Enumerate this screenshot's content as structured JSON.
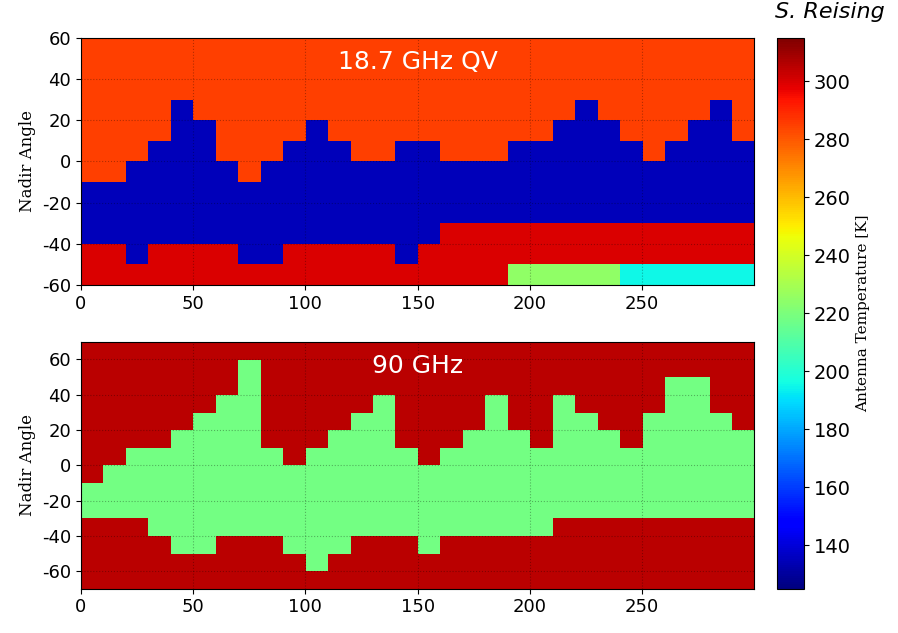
{
  "chart_data": [
    {
      "type": "heatmap",
      "annotation": "18.7 GHz QV",
      "ylabel": "Nadir Angle",
      "xlim": [
        0,
        300
      ],
      "ylim": [
        -60,
        60
      ],
      "xticks": [
        0,
        50,
        100,
        150,
        200,
        250
      ],
      "yticks": [
        -60,
        -40,
        -20,
        0,
        20,
        40,
        60
      ],
      "cells": [
        [
          285,
          285,
          285,
          285,
          285,
          285,
          285,
          285,
          285,
          285,
          285,
          285,
          285,
          285,
          285,
          285,
          285,
          285,
          285,
          285,
          285,
          285,
          285,
          285,
          285,
          285,
          285,
          285,
          285,
          285
        ],
        [
          285,
          285,
          285,
          285,
          285,
          285,
          285,
          285,
          285,
          285,
          285,
          285,
          285,
          285,
          285,
          285,
          285,
          285,
          285,
          285,
          285,
          285,
          285,
          285,
          285,
          285,
          285,
          285,
          285,
          285
        ],
        [
          285,
          285,
          285,
          285,
          285,
          285,
          285,
          285,
          285,
          285,
          285,
          285,
          285,
          285,
          285,
          285,
          285,
          285,
          285,
          285,
          285,
          285,
          285,
          285,
          285,
          285,
          285,
          285,
          285,
          285
        ],
        [
          285,
          285,
          285,
          285,
          135,
          285,
          285,
          285,
          285,
          285,
          285,
          285,
          285,
          285,
          285,
          285,
          285,
          285,
          285,
          285,
          285,
          285,
          135,
          285,
          285,
          285,
          285,
          285,
          135,
          285
        ],
        [
          285,
          285,
          285,
          285,
          135,
          135,
          285,
          285,
          285,
          285,
          135,
          285,
          285,
          285,
          285,
          285,
          285,
          285,
          285,
          285,
          285,
          135,
          135,
          135,
          285,
          285,
          285,
          135,
          135,
          285
        ],
        [
          285,
          285,
          285,
          135,
          135,
          135,
          285,
          285,
          285,
          135,
          135,
          135,
          285,
          285,
          135,
          135,
          285,
          285,
          285,
          135,
          135,
          135,
          135,
          135,
          135,
          285,
          135,
          135,
          135,
          135
        ],
        [
          285,
          285,
          135,
          135,
          135,
          135,
          135,
          285,
          135,
          135,
          135,
          135,
          135,
          135,
          135,
          135,
          135,
          135,
          135,
          135,
          135,
          135,
          135,
          135,
          135,
          135,
          135,
          135,
          135,
          135
        ],
        [
          135,
          135,
          135,
          135,
          135,
          135,
          135,
          135,
          135,
          135,
          135,
          135,
          135,
          135,
          135,
          135,
          135,
          135,
          135,
          135,
          135,
          135,
          135,
          135,
          135,
          135,
          135,
          135,
          135,
          135
        ],
        [
          135,
          135,
          135,
          135,
          135,
          135,
          135,
          135,
          135,
          135,
          135,
          135,
          135,
          135,
          135,
          135,
          135,
          135,
          135,
          135,
          135,
          135,
          135,
          135,
          135,
          135,
          135,
          135,
          135,
          135
        ],
        [
          135,
          135,
          135,
          135,
          135,
          135,
          135,
          135,
          135,
          135,
          135,
          135,
          135,
          135,
          135,
          135,
          300,
          300,
          300,
          300,
          300,
          300,
          300,
          300,
          300,
          300,
          300,
          300,
          300,
          300
        ],
        [
          300,
          300,
          135,
          300,
          300,
          300,
          300,
          135,
          135,
          300,
          300,
          300,
          300,
          300,
          135,
          300,
          300,
          300,
          300,
          300,
          300,
          300,
          300,
          300,
          300,
          300,
          300,
          300,
          300,
          300
        ],
        [
          300,
          300,
          300,
          300,
          300,
          300,
          300,
          300,
          300,
          300,
          300,
          300,
          300,
          300,
          300,
          300,
          300,
          300,
          300,
          225,
          225,
          225,
          225,
          225,
          195,
          195,
          195,
          195,
          195,
          195
        ]
      ]
    },
    {
      "type": "heatmap",
      "annotation": "90 GHz",
      "ylabel": "Nadir Angle",
      "xlim": [
        0,
        300
      ],
      "ylim": [
        -70,
        70
      ],
      "xticks": [
        0,
        50,
        100,
        150,
        200,
        250
      ],
      "yticks": [
        -60,
        -40,
        -20,
        0,
        20,
        40,
        60
      ],
      "cells": [
        [
          305,
          305,
          305,
          305,
          305,
          305,
          305,
          305,
          305,
          305,
          305,
          305,
          305,
          305,
          305,
          305,
          305,
          305,
          305,
          305,
          305,
          305,
          305,
          305,
          305,
          305,
          305,
          305,
          305,
          305
        ],
        [
          305,
          305,
          305,
          305,
          305,
          305,
          305,
          218,
          305,
          305,
          305,
          305,
          305,
          305,
          305,
          305,
          305,
          305,
          305,
          305,
          305,
          305,
          305,
          305,
          305,
          305,
          305,
          305,
          305,
          305
        ],
        [
          305,
          305,
          305,
          305,
          305,
          305,
          305,
          218,
          305,
          305,
          305,
          305,
          305,
          305,
          305,
          305,
          305,
          305,
          305,
          305,
          305,
          305,
          305,
          305,
          305,
          305,
          218,
          218,
          305,
          305
        ],
        [
          305,
          305,
          305,
          305,
          305,
          305,
          218,
          218,
          305,
          305,
          305,
          305,
          305,
          218,
          305,
          305,
          305,
          305,
          218,
          305,
          305,
          218,
          305,
          305,
          305,
          305,
          218,
          218,
          305,
          305
        ],
        [
          305,
          305,
          305,
          305,
          305,
          218,
          218,
          218,
          305,
          305,
          305,
          305,
          218,
          218,
          305,
          305,
          305,
          305,
          218,
          305,
          305,
          218,
          218,
          305,
          305,
          218,
          218,
          218,
          218,
          305
        ],
        [
          305,
          305,
          305,
          305,
          218,
          218,
          218,
          218,
          305,
          305,
          305,
          218,
          218,
          218,
          305,
          305,
          305,
          218,
          218,
          218,
          305,
          218,
          218,
          218,
          305,
          218,
          218,
          218,
          218,
          218
        ],
        [
          305,
          305,
          218,
          218,
          218,
          218,
          218,
          218,
          218,
          305,
          218,
          218,
          218,
          218,
          218,
          305,
          218,
          218,
          218,
          218,
          218,
          218,
          218,
          218,
          218,
          218,
          218,
          218,
          218,
          218
        ],
        [
          305,
          218,
          218,
          218,
          218,
          218,
          218,
          218,
          218,
          218,
          218,
          218,
          218,
          218,
          218,
          218,
          218,
          218,
          218,
          218,
          218,
          218,
          218,
          218,
          218,
          218,
          218,
          218,
          218,
          218
        ],
        [
          218,
          218,
          218,
          218,
          218,
          218,
          218,
          218,
          218,
          218,
          218,
          218,
          218,
          218,
          218,
          218,
          218,
          218,
          218,
          218,
          218,
          218,
          218,
          218,
          218,
          218,
          218,
          218,
          218,
          218
        ],
        [
          218,
          218,
          218,
          218,
          218,
          218,
          218,
          218,
          218,
          218,
          218,
          218,
          218,
          218,
          218,
          218,
          218,
          218,
          218,
          218,
          218,
          218,
          218,
          218,
          218,
          218,
          218,
          218,
          218,
          218
        ],
        [
          305,
          305,
          305,
          218,
          218,
          218,
          218,
          218,
          218,
          218,
          218,
          218,
          218,
          218,
          218,
          218,
          218,
          218,
          218,
          218,
          218,
          305,
          305,
          305,
          305,
          305,
          305,
          305,
          305,
          305
        ],
        [
          305,
          305,
          305,
          305,
          218,
          218,
          305,
          305,
          305,
          218,
          218,
          218,
          305,
          305,
          305,
          218,
          305,
          305,
          305,
          305,
          305,
          305,
          305,
          305,
          305,
          305,
          305,
          305,
          305,
          305
        ],
        [
          305,
          305,
          305,
          305,
          305,
          305,
          305,
          305,
          305,
          305,
          218,
          305,
          305,
          305,
          305,
          305,
          305,
          305,
          305,
          305,
          305,
          305,
          305,
          305,
          305,
          305,
          305,
          305,
          305,
          305
        ],
        [
          305,
          305,
          305,
          305,
          305,
          305,
          305,
          305,
          305,
          305,
          305,
          305,
          305,
          305,
          305,
          305,
          305,
          305,
          305,
          305,
          305,
          305,
          305,
          305,
          305,
          305,
          305,
          305,
          305,
          305
        ]
      ]
    }
  ],
  "colorbar": {
    "label": "Antenna Temperature [K]",
    "range": [
      125,
      315
    ],
    "ticks": [
      140,
      160,
      180,
      200,
      220,
      240,
      260,
      280,
      300
    ]
  },
  "credit": "S. Reising"
}
